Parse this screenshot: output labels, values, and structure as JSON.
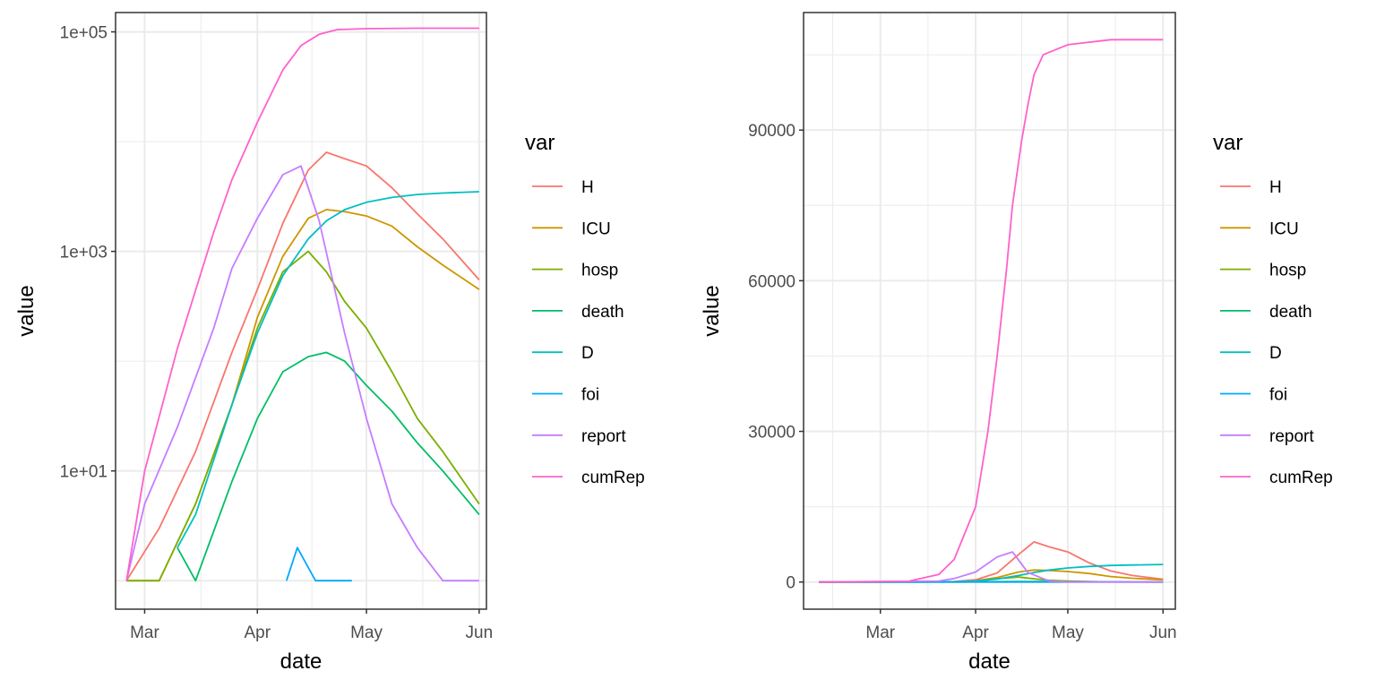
{
  "colors": {
    "H": "#F8766D",
    "ICU": "#CD9600",
    "hosp": "#7CAE00",
    "death": "#00BE67",
    "D": "#00BFC4",
    "foi": "#00A9FF",
    "report": "#C77CFF",
    "cumRep": "#FF61CC"
  },
  "chart_data": [
    {
      "type": "line",
      "scale": "log10",
      "xlabel": "date",
      "ylabel": "value",
      "xticks": [
        "Mar",
        "Apr",
        "May",
        "Jun"
      ],
      "yticks": [
        "1e+01",
        "1e+03",
        "1e+05"
      ],
      "legend_title": "var",
      "legend_position": "right",
      "grid": true,
      "series": [
        {
          "name": "H",
          "x": [
            "2020-02-25",
            "2020-03-05",
            "2020-03-15",
            "2020-03-25",
            "2020-04-01",
            "2020-04-08",
            "2020-04-15",
            "2020-04-20",
            "2020-04-25",
            "2020-05-01",
            "2020-05-08",
            "2020-05-15",
            "2020-05-22",
            "2020-06-01"
          ],
          "y": [
            1,
            3,
            15,
            120,
            450,
            1800,
            5500,
            8000,
            7000,
            6000,
            3800,
            2200,
            1300,
            550
          ]
        },
        {
          "name": "ICU",
          "x": [
            "2020-02-25",
            "2020-03-05",
            "2020-03-15",
            "2020-03-25",
            "2020-04-01",
            "2020-04-08",
            "2020-04-15",
            "2020-04-20",
            "2020-04-25",
            "2020-05-01",
            "2020-05-08",
            "2020-05-15",
            "2020-05-22",
            "2020-06-01"
          ],
          "y": [
            1,
            1,
            5,
            40,
            250,
            900,
            2000,
            2400,
            2300,
            2100,
            1700,
            1100,
            750,
            450
          ]
        },
        {
          "name": "hosp",
          "x": [
            "2020-02-25",
            "2020-03-05",
            "2020-03-15",
            "2020-03-25",
            "2020-04-01",
            "2020-04-08",
            "2020-04-15",
            "2020-04-20",
            "2020-04-25",
            "2020-05-01",
            "2020-05-08",
            "2020-05-15",
            "2020-05-22",
            "2020-06-01"
          ],
          "y": [
            1,
            1,
            5,
            40,
            200,
            650,
            1000,
            650,
            350,
            200,
            80,
            30,
            15,
            5
          ]
        },
        {
          "name": "death",
          "x": [
            "2020-03-10",
            "2020-03-15",
            "2020-03-25",
            "2020-04-01",
            "2020-04-08",
            "2020-04-15",
            "2020-04-20",
            "2020-04-25",
            "2020-05-01",
            "2020-05-08",
            "2020-05-15",
            "2020-05-22",
            "2020-06-01"
          ],
          "y": [
            2,
            1,
            8,
            30,
            80,
            110,
            120,
            100,
            60,
            35,
            18,
            10,
            4
          ]
        },
        {
          "name": "D",
          "x": [
            "2020-03-10",
            "2020-03-15",
            "2020-03-25",
            "2020-04-01",
            "2020-04-08",
            "2020-04-15",
            "2020-04-20",
            "2020-04-25",
            "2020-05-01",
            "2020-05-08",
            "2020-05-15",
            "2020-05-22",
            "2020-06-01"
          ],
          "y": [
            2,
            4,
            40,
            180,
            600,
            1300,
            1900,
            2400,
            2800,
            3100,
            3300,
            3400,
            3500
          ]
        },
        {
          "name": "foi",
          "x": [
            "2020-04-09",
            "2020-04-12",
            "2020-04-17",
            "2020-04-27"
          ],
          "y": [
            1,
            2,
            1,
            1
          ]
        },
        {
          "name": "report",
          "x": [
            "2020-02-25",
            "2020-03-01",
            "2020-03-10",
            "2020-03-20",
            "2020-03-25",
            "2020-04-01",
            "2020-04-08",
            "2020-04-13",
            "2020-04-18",
            "2020-04-25",
            "2020-05-01",
            "2020-05-08",
            "2020-05-15",
            "2020-05-22",
            "2020-06-01"
          ],
          "y": [
            1,
            5,
            25,
            200,
            700,
            2000,
            5000,
            6000,
            1900,
            180,
            30,
            5,
            2,
            1,
            1
          ]
        },
        {
          "name": "cumRep",
          "x": [
            "2020-02-25",
            "2020-03-01",
            "2020-03-10",
            "2020-03-20",
            "2020-03-25",
            "2020-04-01",
            "2020-04-08",
            "2020-04-13",
            "2020-04-18",
            "2020-04-23",
            "2020-05-01",
            "2020-05-15",
            "2020-06-01"
          ],
          "y": [
            1,
            10,
            130,
            1500,
            4500,
            15000,
            45000,
            75000,
            95000,
            105000,
            107000,
            108000,
            108000
          ]
        }
      ]
    },
    {
      "type": "line",
      "scale": "linear",
      "xlabel": "date",
      "ylabel": "value",
      "xticks": [
        "Mar",
        "Apr",
        "May",
        "Jun"
      ],
      "yticks": [
        "0",
        "30000",
        "60000",
        "90000"
      ],
      "legend_title": "var",
      "legend_position": "right",
      "grid": true,
      "series": [
        {
          "name": "H",
          "x": [
            "2020-02-10",
            "2020-03-15",
            "2020-03-25",
            "2020-04-01",
            "2020-04-08",
            "2020-04-15",
            "2020-04-20",
            "2020-04-25",
            "2020-05-01",
            "2020-05-08",
            "2020-05-15",
            "2020-05-22",
            "2020-06-01"
          ],
          "y": [
            0,
            15,
            120,
            450,
            1800,
            5500,
            8000,
            7000,
            6000,
            3800,
            2200,
            1300,
            550
          ]
        },
        {
          "name": "ICU",
          "x": [
            "2020-02-10",
            "2020-03-15",
            "2020-03-25",
            "2020-04-01",
            "2020-04-08",
            "2020-04-15",
            "2020-04-20",
            "2020-04-25",
            "2020-05-01",
            "2020-05-08",
            "2020-05-15",
            "2020-05-22",
            "2020-06-01"
          ],
          "y": [
            0,
            5,
            40,
            250,
            900,
            2000,
            2400,
            2300,
            2100,
            1700,
            1100,
            750,
            450
          ]
        },
        {
          "name": "hosp",
          "x": [
            "2020-02-10",
            "2020-03-15",
            "2020-03-25",
            "2020-04-01",
            "2020-04-08",
            "2020-04-15",
            "2020-04-20",
            "2020-04-25",
            "2020-05-01",
            "2020-05-15",
            "2020-06-01"
          ],
          "y": [
            0,
            5,
            40,
            200,
            650,
            1000,
            650,
            350,
            200,
            30,
            5
          ]
        },
        {
          "name": "death",
          "x": [
            "2020-02-10",
            "2020-03-25",
            "2020-04-01",
            "2020-04-08",
            "2020-04-15",
            "2020-04-20",
            "2020-04-25",
            "2020-05-01",
            "2020-05-15",
            "2020-06-01"
          ],
          "y": [
            0,
            8,
            30,
            80,
            110,
            120,
            100,
            60,
            18,
            4
          ]
        },
        {
          "name": "D",
          "x": [
            "2020-02-10",
            "2020-03-25",
            "2020-04-01",
            "2020-04-08",
            "2020-04-15",
            "2020-04-20",
            "2020-04-25",
            "2020-05-01",
            "2020-05-08",
            "2020-05-15",
            "2020-05-22",
            "2020-06-01"
          ],
          "y": [
            0,
            40,
            180,
            600,
            1300,
            1900,
            2400,
            2800,
            3100,
            3300,
            3400,
            3500
          ]
        },
        {
          "name": "foi",
          "x": [
            "2020-02-10",
            "2020-06-01"
          ],
          "y": [
            0,
            0
          ]
        },
        {
          "name": "report",
          "x": [
            "2020-02-10",
            "2020-03-20",
            "2020-03-25",
            "2020-04-01",
            "2020-04-08",
            "2020-04-13",
            "2020-04-18",
            "2020-04-25",
            "2020-05-01",
            "2020-06-01"
          ],
          "y": [
            0,
            200,
            700,
            2000,
            5000,
            6000,
            1900,
            180,
            30,
            1
          ]
        },
        {
          "name": "cumRep",
          "x": [
            "2020-02-10",
            "2020-03-10",
            "2020-03-20",
            "2020-03-25",
            "2020-04-01",
            "2020-04-05",
            "2020-04-08",
            "2020-04-11",
            "2020-04-13",
            "2020-04-16",
            "2020-04-18",
            "2020-04-20",
            "2020-04-23",
            "2020-05-01",
            "2020-05-15",
            "2020-06-01"
          ],
          "y": [
            0,
            130,
            1500,
            4500,
            15000,
            30000,
            45000,
            62000,
            75000,
            88000,
            95000,
            101000,
            105000,
            107000,
            108000,
            108000
          ]
        }
      ]
    }
  ]
}
